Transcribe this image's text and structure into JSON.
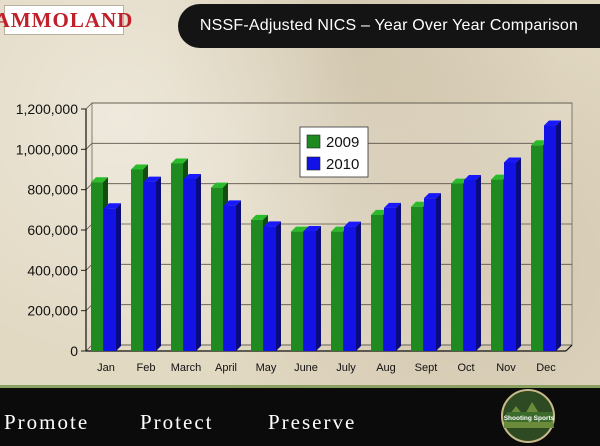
{
  "brand": {
    "logo_text": "AMMOLAND"
  },
  "header": {
    "title": "NSSF-Adjusted NICS – Year Over Year Comparison"
  },
  "chart_data": {
    "type": "bar",
    "categories": [
      "Jan",
      "Feb",
      "March",
      "April",
      "May",
      "June",
      "July",
      "Aug",
      "Sept",
      "Oct",
      "Nov",
      "Dec"
    ],
    "series": [
      {
        "name": "2009",
        "color": "#1f8a1f",
        "values": [
          837000,
          900000,
          930000,
          810000,
          650000,
          592000,
          592000,
          675000,
          715000,
          830000,
          850000,
          1020000
        ]
      },
      {
        "name": "2010",
        "color": "#1212e6",
        "values": [
          708000,
          840000,
          853000,
          722000,
          618000,
          595000,
          617000,
          710000,
          758000,
          848000,
          935000,
          1118000
        ]
      }
    ],
    "ylim": [
      0,
      1200000
    ],
    "yticks": [
      "0",
      "200,000",
      "400,000",
      "600,000",
      "800,000",
      "1,000,000",
      "1,200,000"
    ],
    "grid": true,
    "legend": "top-center"
  },
  "footer": {
    "slogan": [
      "Promote",
      "Protect",
      "Preserve"
    ],
    "seal_text": "Shooting Sports"
  }
}
